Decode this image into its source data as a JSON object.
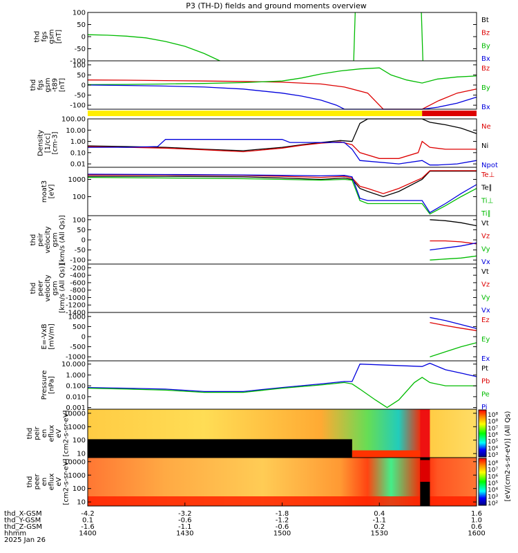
{
  "title": "P3 (TH-D) fields and ground moments overview",
  "chart_data": {
    "type": "line",
    "title": "P3 (TH-D) fields and ground moments overview",
    "x_ticks": [
      {
        "rows": [
          "-4.2",
          "0.1",
          "-1.6",
          "1400"
        ]
      },
      {
        "rows": [
          "-3.2",
          "-0.6",
          "-1.1",
          "1430"
        ]
      },
      {
        "rows": [
          "-1.8",
          "-1.2",
          "-0.6",
          "1500"
        ]
      },
      {
        "rows": [
          "0.4",
          "-1.1",
          "0.2",
          "1530"
        ]
      },
      {
        "rows": [
          "1.6",
          "1.0",
          "0.6",
          "1600"
        ]
      }
    ],
    "x_row_labels": [
      "thd_X-GSM",
      "thd_Y-GSM",
      "thd_Z-GSM",
      "hhmm"
    ],
    "date_label": "2025 Jan 26",
    "panels": [
      {
        "ylabel": [
          "thd",
          "fgs",
          "gsm",
          "[nT]"
        ],
        "yticks": [
          "100",
          "50",
          "0",
          "-50",
          "-100"
        ],
        "ylim": [
          -100,
          100
        ],
        "scale": "linear",
        "legend": [
          {
            "name": "Bt",
            "color": "#000000"
          },
          {
            "name": "Bz",
            "color": "#dd0000"
          },
          {
            "name": "By",
            "color": "#00bb00"
          },
          {
            "name": "Bx",
            "color": "#0000dd"
          }
        ],
        "series": [
          {
            "name": "By",
            "color": "#00bb00",
            "x": [
              0,
              0.05,
              0.1,
              0.15,
              0.2,
              0.25,
              0.3,
              0.34
            ],
            "y": [
              8,
              6,
              2,
              -5,
              -20,
              -40,
              -70,
              -100
            ]
          },
          {
            "name": "By",
            "color": "#00bb00",
            "x": [
              0.684,
              0.686,
              0.688
            ],
            "y": [
              -100,
              0,
              100
            ]
          },
          {
            "name": "By",
            "color": "#00bb00",
            "x": [
              0.858,
              0.86,
              0.862
            ],
            "y": [
              100,
              0,
              -100
            ]
          }
        ]
      },
      {
        "ylabel": [
          "thd",
          "fgs",
          "gsm",
          "-t89",
          "[nT]"
        ],
        "yticks": [
          "100",
          "50",
          "0",
          "-50",
          "-100"
        ],
        "ylim": [
          -120,
          120
        ],
        "scale": "linear",
        "legend": [
          {
            "name": "Bz",
            "color": "#dd0000"
          },
          {
            "name": "By",
            "color": "#00bb00"
          },
          {
            "name": "Bx",
            "color": "#0000dd"
          }
        ],
        "series": [
          {
            "name": "Bz",
            "color": "#dd0000",
            "x": [
              0,
              0.1,
              0.2,
              0.3,
              0.4,
              0.5,
              0.6,
              0.66,
              0.72,
              0.76,
              0.82,
              0.86,
              0.9,
              0.95,
              1.0
            ],
            "y": [
              25,
              24,
              22,
              20,
              18,
              14,
              5,
              -10,
              -40,
              -120,
              -120,
              -120,
              -80,
              -40,
              -20
            ]
          },
          {
            "name": "By",
            "color": "#00bb00",
            "x": [
              0,
              0.1,
              0.2,
              0.3,
              0.4,
              0.5,
              0.55,
              0.6,
              0.65,
              0.7,
              0.75,
              0.78,
              0.82,
              0.86,
              0.9,
              0.95,
              1.0
            ],
            "y": [
              2,
              3,
              5,
              8,
              12,
              20,
              35,
              55,
              70,
              80,
              85,
              50,
              25,
              10,
              30,
              40,
              45
            ]
          },
          {
            "name": "Bx",
            "color": "#0000dd",
            "x": [
              0,
              0.1,
              0.2,
              0.3,
              0.4,
              0.5,
              0.55,
              0.6,
              0.64,
              0.66,
              0.8,
              0.86,
              0.9,
              0.95,
              1.0
            ],
            "y": [
              0,
              -2,
              -5,
              -10,
              -20,
              -40,
              -55,
              -75,
              -100,
              -120,
              -120,
              -120,
              -110,
              -90,
              -60
            ]
          }
        ]
      },
      {
        "ylabel": [
          "Density",
          "[1/cc]",
          "[cm-3]"
        ],
        "yticks": [
          "100.00",
          "10.00",
          "1.00",
          "0.10",
          "0.01"
        ],
        "ylim": [
          0.005,
          100
        ],
        "scale": "log",
        "legend": [
          {
            "name": "Ne",
            "color": "#dd0000"
          },
          {
            "name": "Ni",
            "color": "#000000"
          },
          {
            "name": "Npot",
            "color": "#0000dd"
          }
        ],
        "series": [
          {
            "name": "Ni",
            "color": "#000000",
            "x": [
              0,
              0.1,
              0.2,
              0.3,
              0.4,
              0.5,
              0.55,
              0.6,
              0.65,
              0.68,
              0.7,
              0.72,
              0.86,
              0.88,
              0.92,
              0.96,
              1.0
            ],
            "y": [
              0.4,
              0.35,
              0.3,
              0.2,
              0.15,
              0.3,
              0.5,
              0.8,
              1.2,
              1.0,
              40,
              100,
              100,
              50,
              30,
              15,
              5
            ]
          },
          {
            "name": "Ne",
            "color": "#dd0000",
            "x": [
              0,
              0.1,
              0.2,
              0.3,
              0.4,
              0.5,
              0.55,
              0.6,
              0.65,
              0.68,
              0.7,
              0.75,
              0.8,
              0.85,
              0.86,
              0.88,
              0.92,
              1.0
            ],
            "y": [
              0.35,
              0.3,
              0.25,
              0.18,
              0.12,
              0.25,
              0.45,
              0.7,
              0.9,
              0.5,
              0.1,
              0.03,
              0.03,
              0.1,
              1.0,
              0.3,
              0.2,
              0.2
            ]
          },
          {
            "name": "Npot",
            "color": "#0000dd",
            "x": [
              0,
              0.1,
              0.18,
              0.2,
              0.5,
              0.52,
              0.66,
              0.68,
              0.7,
              0.8,
              0.86,
              0.88,
              0.9,
              0.95,
              1.0
            ],
            "y": [
              0.3,
              0.3,
              0.35,
              1.5,
              1.5,
              0.8,
              0.8,
              0.2,
              0.02,
              0.01,
              0.02,
              0.008,
              0.008,
              0.01,
              0.02
            ]
          }
        ]
      },
      {
        "ylabel": [
          "moat3",
          "[eV]"
        ],
        "yticks": [
          "1000",
          "100"
        ],
        "ylim": [
          8,
          5000
        ],
        "scale": "log",
        "legend": [
          {
            "name": "Te⊥",
            "color": "#dd0000"
          },
          {
            "name": "Te∥",
            "color": "#000000"
          },
          {
            "name": "Ti⊥",
            "color": "#00bb00"
          },
          {
            "name": "Ti∥",
            "color": "#00bb00"
          }
        ],
        "series": [
          {
            "name": "Te∥",
            "color": "#000000",
            "x": [
              0,
              0.2,
              0.4,
              0.5,
              0.6,
              0.66,
              0.68,
              0.7,
              0.72,
              0.76,
              0.8,
              0.86,
              0.88,
              0.95,
              1.0
            ],
            "y": [
              1500,
              1500,
              1400,
              1200,
              1000,
              1200,
              1000,
              300,
              200,
              100,
              200,
              1000,
              3000,
              3000,
              3000
            ]
          },
          {
            "name": "Te⊥",
            "color": "#dd0000",
            "x": [
              0,
              0.2,
              0.4,
              0.5,
              0.6,
              0.66,
              0.68,
              0.7,
              0.72,
              0.76,
              0.8,
              0.86,
              0.88,
              0.95,
              1.0
            ],
            "y": [
              1800,
              1800,
              1700,
              1500,
              1300,
              1500,
              1200,
              400,
              300,
              150,
              300,
              1200,
              3200,
              3200,
              3200
            ]
          },
          {
            "name": "Ti⊥",
            "color": "#00bb00",
            "x": [
              0,
              0.2,
              0.4,
              0.5,
              0.6,
              0.66,
              0.68,
              0.7,
              0.72,
              0.8,
              0.86,
              0.88,
              0.92,
              0.96,
              1.0
            ],
            "y": [
              1300,
              1200,
              1100,
              1000,
              900,
              1000,
              900,
              60,
              40,
              40,
              40,
              10,
              30,
              100,
              300
            ]
          },
          {
            "name": "Ti∥",
            "color": "#0000dd",
            "x": [
              0,
              0.2,
              0.4,
              0.5,
              0.6,
              0.66,
              0.68,
              0.7,
              0.72,
              0.8,
              0.86,
              0.88,
              0.92,
              0.96,
              1.0
            ],
            "y": [
              2000,
              1900,
              1800,
              1700,
              1600,
              1700,
              1400,
              80,
              60,
              60,
              60,
              12,
              40,
              150,
              500
            ]
          }
        ]
      },
      {
        "ylabel": [
          "thd",
          "peir",
          "velocity",
          "gsm",
          "[km/s (All Qs)]"
        ],
        "yticks": [
          "100",
          "50",
          "0",
          "-50",
          "-100"
        ],
        "ylim": [
          -120,
          120
        ],
        "scale": "linear",
        "legend": [
          {
            "name": "Vt",
            "color": "#000000"
          },
          {
            "name": "Vz",
            "color": "#dd0000"
          },
          {
            "name": "Vy",
            "color": "#00bb00"
          },
          {
            "name": "Vx",
            "color": "#0000dd"
          }
        ],
        "series": [
          {
            "name": "Vt",
            "color": "#000000",
            "x": [
              0.88,
              0.92,
              0.96,
              1.0
            ],
            "y": [
              100,
              95,
              85,
              70
            ]
          },
          {
            "name": "Vz",
            "color": "#dd0000",
            "x": [
              0.88,
              0.92,
              0.96,
              1.0
            ],
            "y": [
              -5,
              -5,
              -10,
              -20
            ]
          },
          {
            "name": "Vy",
            "color": "#00bb00",
            "x": [
              0.88,
              0.92,
              0.96,
              1.0
            ],
            "y": [
              -100,
              -95,
              -90,
              -80
            ]
          },
          {
            "name": "Vx",
            "color": "#0000dd",
            "x": [
              0.88,
              0.92,
              0.96,
              1.0
            ],
            "y": [
              -50,
              -40,
              -30,
              -15
            ]
          }
        ]
      },
      {
        "ylabel": [
          "thd",
          "peer",
          "velocity",
          "gsm",
          "[km/s (All Qs)]"
        ],
        "yticks": [
          "-200",
          "-400",
          "-600",
          "-800",
          "-1000",
          "-1200",
          "-1400"
        ],
        "ylim": [
          -1400,
          -100
        ],
        "scale": "linear",
        "legend": [
          {
            "name": "Vt",
            "color": "#000000"
          },
          {
            "name": "Vz",
            "color": "#dd0000"
          },
          {
            "name": "Vy",
            "color": "#00bb00"
          },
          {
            "name": "Vx",
            "color": "#0000dd"
          }
        ],
        "series": []
      },
      {
        "ylabel": [
          "E=-VxB",
          "[mV/m]"
        ],
        "yticks": [
          "1000",
          "500",
          "0",
          "-500",
          "-1000"
        ],
        "ylim": [
          -1200,
          1200
        ],
        "scale": "linear",
        "legend": [
          {
            "name": "Ez",
            "color": "#dd0000"
          },
          {
            "name": "Ey",
            "color": "#00bb00"
          },
          {
            "name": "Ex",
            "color": "#0000dd"
          }
        ],
        "series": [
          {
            "name": "Ex",
            "color": "#0000dd",
            "x": [
              0.88,
              0.92,
              0.96,
              1.0
            ],
            "y": [
              950,
              800,
              600,
              400
            ]
          },
          {
            "name": "Ez",
            "color": "#dd0000",
            "x": [
              0.88,
              0.92,
              0.96,
              1.0
            ],
            "y": [
              700,
              550,
              420,
              300
            ]
          },
          {
            "name": "Ey",
            "color": "#00bb00",
            "x": [
              0.88,
              0.92,
              0.96,
              1.0
            ],
            "y": [
              -1000,
              -750,
              -500,
              -300
            ]
          }
        ]
      },
      {
        "ylabel": [
          "Pressure",
          "[nPa]"
        ],
        "yticks": [
          "10.000",
          "1.000",
          "0.100",
          "0.010",
          "0.001"
        ],
        "ylim": [
          0.0007,
          20
        ],
        "scale": "log",
        "legend": [
          {
            "name": "Pt",
            "color": "#000000"
          },
          {
            "name": "Pb",
            "color": "#dd0000"
          },
          {
            "name": "Pe",
            "color": "#00bb00"
          },
          {
            "name": "Pi",
            "color": "#0000dd"
          }
        ],
        "series": [
          {
            "name": "Pt",
            "color": "#0000dd",
            "x": [
              0,
              0.1,
              0.2,
              0.3,
              0.4,
              0.5,
              0.6,
              0.66,
              0.68,
              0.7,
              0.86,
              0.88,
              0.92,
              0.96,
              1.0
            ],
            "y": [
              0.07,
              0.06,
              0.05,
              0.03,
              0.03,
              0.07,
              0.15,
              0.25,
              0.25,
              10,
              6,
              12,
              3,
              1.5,
              0.7
            ]
          },
          {
            "name": "Pe",
            "color": "#00bb00",
            "x": [
              0,
              0.1,
              0.2,
              0.3,
              0.4,
              0.5,
              0.6,
              0.66,
              0.68,
              0.7,
              0.74,
              0.77,
              0.8,
              0.84,
              0.86,
              0.88,
              0.92,
              0.96,
              1.0
            ],
            "y": [
              0.06,
              0.05,
              0.04,
              0.025,
              0.025,
              0.06,
              0.12,
              0.2,
              0.15,
              0.05,
              0.005,
              0.001,
              0.005,
              0.2,
              0.6,
              0.2,
              0.1,
              0.1,
              0.1
            ]
          }
        ]
      },
      {
        "ylabel": [
          "thd",
          "peir",
          "en",
          "eflux",
          "eV",
          "[cm2-s-sr-eV]"
        ],
        "yticks": [
          "10000",
          "1000",
          "100",
          "10"
        ],
        "ylim": [
          5,
          20000
        ],
        "scale": "log",
        "spectrogram": true,
        "colorbar_ticks": [
          "10⁸",
          "10⁸",
          "10⁷",
          "10⁶",
          "10⁵",
          "10⁴",
          "10³"
        ]
      },
      {
        "ylabel": [
          "thd",
          "peer",
          "en",
          "eflux",
          "eV",
          "[cm2-s-sr-eV]"
        ],
        "yticks": [
          "10000",
          "1000",
          "100",
          "10"
        ],
        "ylim": [
          5,
          20000
        ],
        "scale": "log",
        "spectrogram": true,
        "colorbar_ticks": [
          "10⁸",
          "10⁷",
          "10⁶",
          "10⁵",
          "10⁴",
          "10³",
          "10²"
        ]
      }
    ],
    "colorbar_title": "[eV/(cm2-s-sr-eV)] (All Qs)",
    "mode_bar": [
      {
        "from": 0,
        "to": 0.86,
        "color": "#ffee00"
      },
      {
        "from": 0.86,
        "to": 1.0,
        "color": "#dd0000"
      }
    ]
  }
}
